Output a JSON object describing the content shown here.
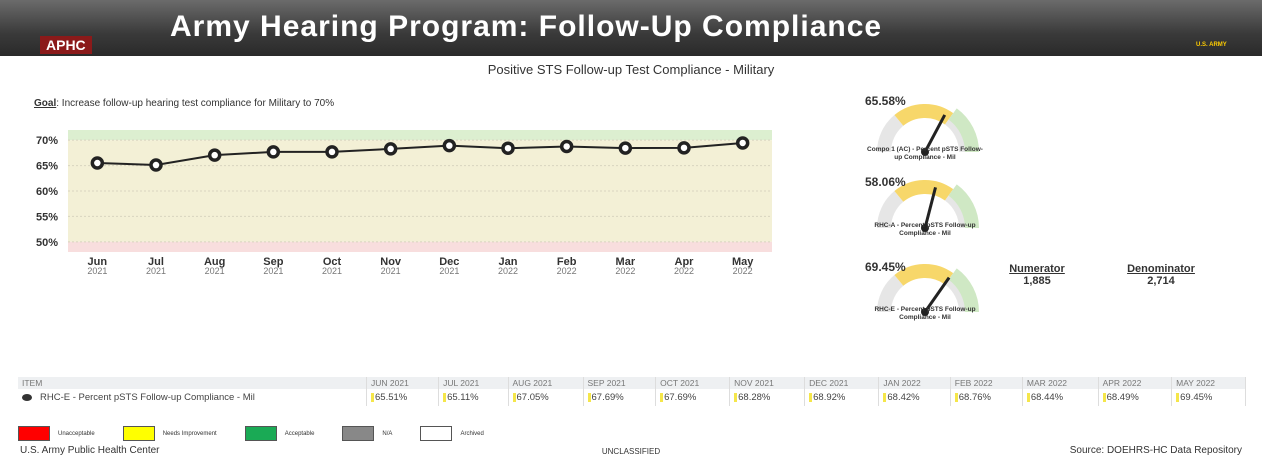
{
  "header": {
    "title": "Army Hearing Program: Follow-Up Compliance",
    "logo": "APHC",
    "badge": "U.S. ARMY"
  },
  "subtitle": "Positive STS Follow-up Test Compliance - Military",
  "goal": {
    "label": "Goal",
    "text": ": Increase follow-up hearing test compliance for Military to 70%"
  },
  "chart_data": {
    "type": "line",
    "categories": [
      "Jun 2021",
      "Jul 2021",
      "Aug 2021",
      "Sep 2021",
      "Oct 2021",
      "Nov 2021",
      "Dec 2021",
      "Jan 2022",
      "Feb 2022",
      "Mar 2022",
      "Apr 2022",
      "May 2022"
    ],
    "values": [
      65.51,
      65.11,
      67.05,
      67.69,
      67.69,
      68.28,
      68.92,
      68.42,
      68.76,
      68.44,
      68.49,
      69.45
    ],
    "color": "#222222",
    "ylim": [
      48,
      72
    ],
    "yticks": [
      {
        "value": 50,
        "label": "50%"
      },
      {
        "value": 55,
        "label": "55%"
      },
      {
        "value": 60,
        "label": "60%"
      },
      {
        "value": 65,
        "label": "65%"
      },
      {
        "value": 70,
        "label": "70%"
      }
    ],
    "grid": true
  },
  "gauges": [
    {
      "type": "gauge",
      "value": 65.58,
      "value_label": "65.58%",
      "caption": "Compo 1 (AC) - Percent pSTS Follow-up Compliance - Mil",
      "ylim": [
        0,
        100
      ]
    },
    {
      "type": "gauge",
      "value": 58.06,
      "value_label": "58.06%",
      "caption": "RHC-A - Percent pSTS Follow-up Compliance - Mil",
      "ylim": [
        0,
        100
      ]
    },
    {
      "type": "gauge",
      "value": 69.45,
      "value_label": "69.45%",
      "caption": "RHC-E - Percent pSTS Follow-up Compliance - Mil",
      "ylim": [
        0,
        100
      ]
    }
  ],
  "numerator": {
    "label": "Numerator",
    "value": "1,885"
  },
  "denominator": {
    "label": "Denominator",
    "value": "2,714"
  },
  "table": {
    "header": [
      "ITEM",
      "JUN 2021",
      "JUL 2021",
      "AUG 2021",
      "SEP 2021",
      "OCT 2021",
      "NOV 2021",
      "DEC 2021",
      "JAN 2022",
      "FEB 2022",
      "MAR 2022",
      "APR 2022",
      "MAY 2022"
    ],
    "rows": [
      [
        "RHC-E - Percent pSTS Follow-up Compliance - Mil",
        "65.51%",
        "65.11%",
        "67.05%",
        "67.69%",
        "67.69%",
        "68.28%",
        "68.92%",
        "68.42%",
        "68.76%",
        "68.44%",
        "68.49%",
        "69.45%"
      ]
    ]
  },
  "legend": [
    {
      "label": "Unacceptable",
      "color": "#ff0000"
    },
    {
      "label": "Needs Improvement",
      "color": "#ffff00"
    },
    {
      "label": "Acceptable",
      "color": "#1aaa55"
    },
    {
      "label": "N/A",
      "color": "#888888"
    },
    {
      "label": "Archived",
      "color": "#ffffff"
    }
  ],
  "footer": {
    "left": "U.S. Army Public Health Center",
    "center": "UNCLASSIFIED",
    "right": "Source: DOEHRS-HC Data Repository"
  }
}
